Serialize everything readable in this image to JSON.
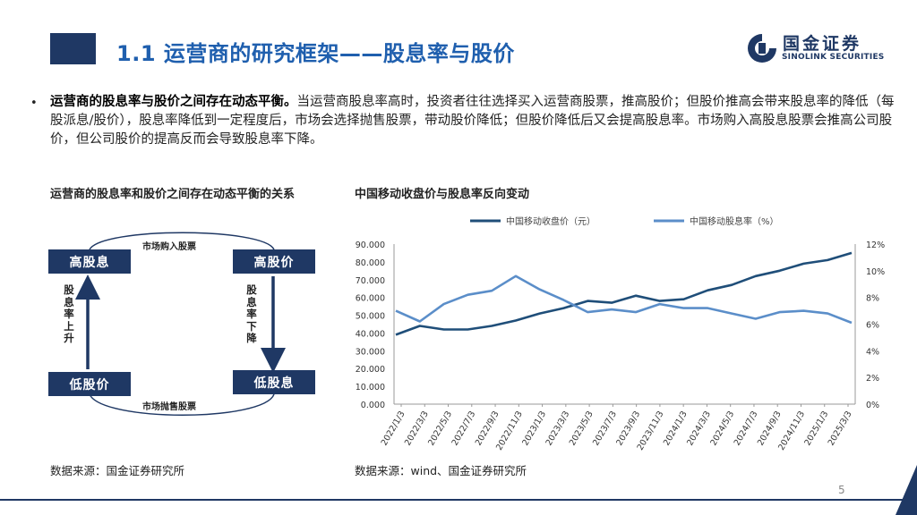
{
  "header": {
    "title": "1.1 运营商的研究框架——股息率与股价",
    "logo_cn": "国金证券",
    "logo_en": "SINOLINK SECURITIES"
  },
  "body": {
    "bullet": "•",
    "bold_text": "运营商的股息率与股价之间存在动态平衡。",
    "text": "当运营商股息率高时，投资者往往选择买入运营商股票，推高股价；但股价推高会带来股息率的降低（每股派息/股价），股息率降低到一定程度后，市场会选择抛售股票，带动股价降低；但股价降低后又会提高股息率。市场购入高股息股票会推高公司股价，但公司股价的提高反而会导致股息率下降。"
  },
  "left_panel": {
    "subtitle": "运营商的股息率和股价之间存在动态平衡的关系",
    "boxes": {
      "top_left": "高股息",
      "top_right": "高股价",
      "bottom_left": "低股价",
      "bottom_right": "低股息"
    },
    "top_label": "市场购入股票",
    "bottom_label": "市场抛售股票",
    "left_vertical": "股息率上升",
    "right_vertical": "股息率下降",
    "source": "数据来源：国金证券研究所"
  },
  "right_panel": {
    "subtitle": "中国移动收盘价与股息率反向变动",
    "source": "数据来源：wind、国金证券研究所"
  },
  "colors": {
    "navy": "#1f3864",
    "title_blue": "#1f5fae",
    "price_line": "#1f4e79",
    "yield_line": "#5b8ec9"
  },
  "chart_data": {
    "type": "line",
    "legend_position": "top",
    "x_ticks": [
      "2022/1/3",
      "2022/3/3",
      "2022/5/3",
      "2022/7/3",
      "2022/9/3",
      "2022/11/3",
      "2023/1/3",
      "2023/3/3",
      "2023/5/3",
      "2023/7/3",
      "2023/9/3",
      "2023/11/3",
      "2024/1/3",
      "2024/3/3",
      "2024/5/3",
      "2024/7/3",
      "2024/9/3",
      "2024/11/3",
      "2025/1/3",
      "2025/3/3"
    ],
    "y_left_ticks": [
      "90.000",
      "80.000",
      "70.000",
      "60.000",
      "50.000",
      "40.000",
      "30.000",
      "20.000",
      "10.000",
      "0.000"
    ],
    "y_right_ticks": [
      "12%",
      "10%",
      "8%",
      "6%",
      "4%",
      "2%",
      "0%"
    ],
    "y_left_range": [
      0,
      90
    ],
    "y_right_range": [
      0,
      12
    ],
    "series": [
      {
        "name": "中国移动收盘价（元）",
        "axis": "left",
        "values": [
          39,
          44,
          42,
          42,
          44,
          47,
          51,
          54,
          58,
          57,
          61,
          58,
          59,
          64,
          67,
          72,
          75,
          79,
          81,
          85
        ]
      },
      {
        "name": "中国移动股息率（%）",
        "axis": "right",
        "values": [
          7.0,
          6.2,
          7.5,
          8.2,
          8.5,
          9.6,
          8.6,
          7.8,
          6.9,
          7.1,
          6.9,
          7.5,
          7.2,
          7.2,
          6.8,
          6.4,
          6.9,
          7.0,
          6.8,
          6.1
        ]
      }
    ]
  }
}
